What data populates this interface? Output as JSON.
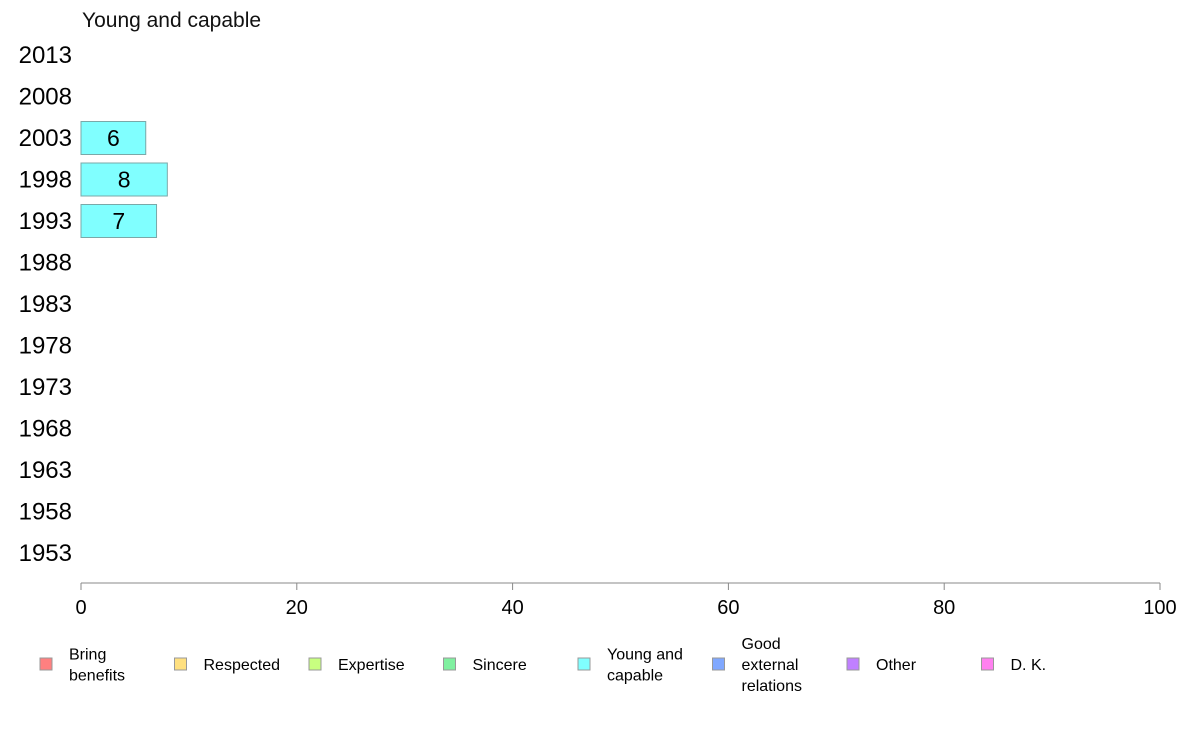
{
  "chart_data": {
    "type": "bar",
    "orientation": "horizontal",
    "title": "Young and capable",
    "categories": [
      "2013",
      "2008",
      "2003",
      "1998",
      "1993",
      "1988",
      "1983",
      "1978",
      "1973",
      "1968",
      "1963",
      "1958",
      "1953"
    ],
    "series": [
      {
        "name": "Young and capable",
        "color": "#80ffff",
        "values": [
          null,
          null,
          6,
          8,
          7,
          null,
          null,
          null,
          null,
          null,
          null,
          null,
          null
        ],
        "labels": [
          "",
          "",
          "6",
          "8",
          "7",
          "",
          "",
          "",
          "",
          "",
          "",
          "",
          ""
        ]
      }
    ],
    "xlim": [
      0,
      100
    ],
    "xticks": [
      0,
      20,
      40,
      60,
      80,
      100
    ],
    "grid": false,
    "legend_position": "bottom",
    "legend": [
      {
        "label": "Bring benefits",
        "color": "#ff8080"
      },
      {
        "label": "Respected",
        "color": "#ffe080"
      },
      {
        "label": "Expertise",
        "color": "#c8ff80"
      },
      {
        "label": "Sincere",
        "color": "#80f0a0"
      },
      {
        "label": "Young and capable",
        "color": "#80ffff"
      },
      {
        "label": "Good external relations",
        "color": "#80a8ff"
      },
      {
        "label": "Other",
        "color": "#c080ff"
      },
      {
        "label": "D. K.",
        "color": "#ff80f0"
      }
    ]
  }
}
